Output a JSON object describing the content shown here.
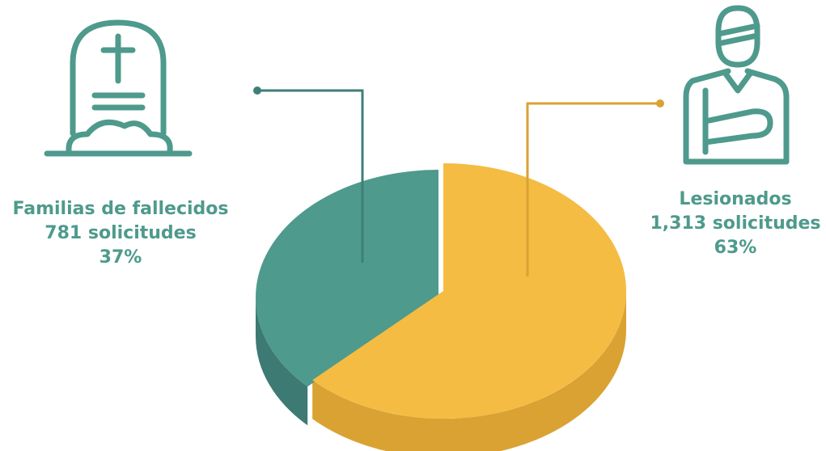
{
  "colors": {
    "teal": "#4e9a8c",
    "teal_dark": "#3d7a73",
    "gold": "#f4bc42",
    "gold_dark": "#d9a233",
    "line_teal": "#3f7f79",
    "line_gold": "#d9a233",
    "icon": "#4e9a8c",
    "text": "#4e9a8c"
  },
  "chart_data": {
    "type": "pie",
    "title": "",
    "slices": [
      {
        "name": "Familias de fallecidos",
        "count_label": "781 solicitudes",
        "percent_label": "37%",
        "value": 781,
        "percent": 37,
        "color": "#4e9a8c",
        "icon": "tombstone-icon"
      },
      {
        "name": "Lesionados",
        "count_label": "1,313 solicitudes",
        "percent_label": "63%",
        "value": 1313,
        "percent": 63,
        "color": "#f4bc42",
        "icon": "injured-person-icon"
      }
    ]
  }
}
